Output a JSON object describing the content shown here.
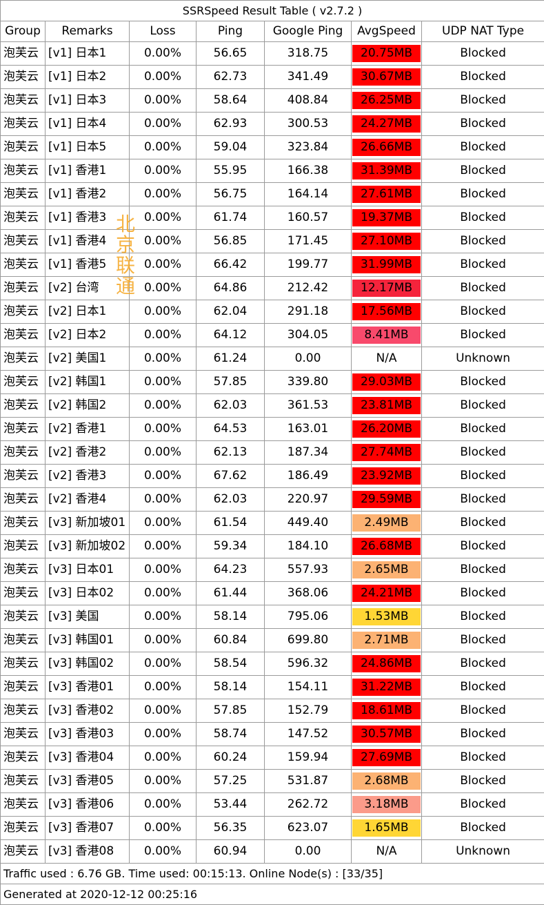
{
  "title": "SSRSpeed Result Table ( v2.7.2 )",
  "columns": [
    "Group",
    "Remarks",
    "Loss",
    "Ping",
    "Google Ping",
    "AvgSpeed",
    "UDP NAT Type"
  ],
  "rows": [
    {
      "group": "泡芙云",
      "remarks": "[v1] 日本1",
      "loss": "0.00%",
      "ping": "56.65",
      "google_ping": "318.75",
      "avg_speed": "20.75MB",
      "speed_color": "#ff0000",
      "nat": "Blocked"
    },
    {
      "group": "泡芙云",
      "remarks": "[v1] 日本2",
      "loss": "0.00%",
      "ping": "62.73",
      "google_ping": "341.49",
      "avg_speed": "30.67MB",
      "speed_color": "#ff0000",
      "nat": "Blocked"
    },
    {
      "group": "泡芙云",
      "remarks": "[v1] 日本3",
      "loss": "0.00%",
      "ping": "58.64",
      "google_ping": "408.84",
      "avg_speed": "26.25MB",
      "speed_color": "#ff0000",
      "nat": "Blocked"
    },
    {
      "group": "泡芙云",
      "remarks": "[v1] 日本4",
      "loss": "0.00%",
      "ping": "62.93",
      "google_ping": "300.53",
      "avg_speed": "24.27MB",
      "speed_color": "#ff0000",
      "nat": "Blocked"
    },
    {
      "group": "泡芙云",
      "remarks": "[v1] 日本5",
      "loss": "0.00%",
      "ping": "59.04",
      "google_ping": "323.84",
      "avg_speed": "26.66MB",
      "speed_color": "#ff0000",
      "nat": "Blocked"
    },
    {
      "group": "泡芙云",
      "remarks": "[v1] 香港1",
      "loss": "0.00%",
      "ping": "55.95",
      "google_ping": "166.38",
      "avg_speed": "31.39MB",
      "speed_color": "#ff0000",
      "nat": "Blocked"
    },
    {
      "group": "泡芙云",
      "remarks": "[v1] 香港2",
      "loss": "0.00%",
      "ping": "56.75",
      "google_ping": "164.14",
      "avg_speed": "27.61MB",
      "speed_color": "#ff0000",
      "nat": "Blocked"
    },
    {
      "group": "泡芙云",
      "remarks": "[v1] 香港3",
      "loss": "0.00%",
      "ping": "61.74",
      "google_ping": "160.57",
      "avg_speed": "19.37MB",
      "speed_color": "#ff0000",
      "nat": "Blocked"
    },
    {
      "group": "泡芙云",
      "remarks": "[v1] 香港4",
      "loss": "0.00%",
      "ping": "56.85",
      "google_ping": "171.45",
      "avg_speed": "27.10MB",
      "speed_color": "#ff0000",
      "nat": "Blocked"
    },
    {
      "group": "泡芙云",
      "remarks": "[v1] 香港5",
      "loss": "0.00%",
      "ping": "66.42",
      "google_ping": "199.77",
      "avg_speed": "31.99MB",
      "speed_color": "#ff0000",
      "nat": "Blocked"
    },
    {
      "group": "泡芙云",
      "remarks": "[v2] 台湾",
      "loss": "0.00%",
      "ping": "64.86",
      "google_ping": "212.42",
      "avg_speed": "12.17MB",
      "speed_color": "#f5243c",
      "nat": "Blocked"
    },
    {
      "group": "泡芙云",
      "remarks": "[v2] 日本1",
      "loss": "0.00%",
      "ping": "62.04",
      "google_ping": "291.18",
      "avg_speed": "17.56MB",
      "speed_color": "#ff0000",
      "nat": "Blocked"
    },
    {
      "group": "泡芙云",
      "remarks": "[v2] 日本2",
      "loss": "0.00%",
      "ping": "64.12",
      "google_ping": "304.05",
      "avg_speed": "8.41MB",
      "speed_color": "#f84a6c",
      "nat": "Blocked"
    },
    {
      "group": "泡芙云",
      "remarks": "[v2] 美国1",
      "loss": "0.00%",
      "ping": "61.24",
      "google_ping": "0.00",
      "avg_speed": "N/A",
      "speed_color": "#ffffff",
      "nat": "Unknown"
    },
    {
      "group": "泡芙云",
      "remarks": "[v2] 韩国1",
      "loss": "0.00%",
      "ping": "57.85",
      "google_ping": "339.80",
      "avg_speed": "29.03MB",
      "speed_color": "#ff0000",
      "nat": "Blocked"
    },
    {
      "group": "泡芙云",
      "remarks": "[v2] 韩国2",
      "loss": "0.00%",
      "ping": "62.03",
      "google_ping": "361.53",
      "avg_speed": "23.81MB",
      "speed_color": "#ff0000",
      "nat": "Blocked"
    },
    {
      "group": "泡芙云",
      "remarks": "[v2] 香港1",
      "loss": "0.00%",
      "ping": "64.53",
      "google_ping": "163.01",
      "avg_speed": "26.20MB",
      "speed_color": "#ff0000",
      "nat": "Blocked"
    },
    {
      "group": "泡芙云",
      "remarks": "[v2] 香港2",
      "loss": "0.00%",
      "ping": "62.13",
      "google_ping": "187.34",
      "avg_speed": "27.74MB",
      "speed_color": "#ff0000",
      "nat": "Blocked"
    },
    {
      "group": "泡芙云",
      "remarks": "[v2] 香港3",
      "loss": "0.00%",
      "ping": "67.62",
      "google_ping": "186.49",
      "avg_speed": "23.92MB",
      "speed_color": "#ff0000",
      "nat": "Blocked"
    },
    {
      "group": "泡芙云",
      "remarks": "[v2] 香港4",
      "loss": "0.00%",
      "ping": "62.03",
      "google_ping": "220.97",
      "avg_speed": "29.59MB",
      "speed_color": "#ff0000",
      "nat": "Blocked"
    },
    {
      "group": "泡芙云",
      "remarks": "[v3] 新加坡01",
      "loss": "0.00%",
      "ping": "61.54",
      "google_ping": "449.40",
      "avg_speed": "2.49MB",
      "speed_color": "#fcb273",
      "nat": "Blocked"
    },
    {
      "group": "泡芙云",
      "remarks": "[v3] 新加坡02",
      "loss": "0.00%",
      "ping": "59.34",
      "google_ping": "184.10",
      "avg_speed": "26.68MB",
      "speed_color": "#ff0000",
      "nat": "Blocked"
    },
    {
      "group": "泡芙云",
      "remarks": "[v3] 日本01",
      "loss": "0.00%",
      "ping": "64.23",
      "google_ping": "557.93",
      "avg_speed": "2.65MB",
      "speed_color": "#fcb273",
      "nat": "Blocked"
    },
    {
      "group": "泡芙云",
      "remarks": "[v3] 日本02",
      "loss": "0.00%",
      "ping": "61.44",
      "google_ping": "368.06",
      "avg_speed": "24.21MB",
      "speed_color": "#ff0000",
      "nat": "Blocked"
    },
    {
      "group": "泡芙云",
      "remarks": "[v3] 美国",
      "loss": "0.00%",
      "ping": "58.14",
      "google_ping": "795.06",
      "avg_speed": "1.53MB",
      "speed_color": "#ffd635",
      "nat": "Blocked"
    },
    {
      "group": "泡芙云",
      "remarks": "[v3] 韩国01",
      "loss": "0.00%",
      "ping": "60.84",
      "google_ping": "699.80",
      "avg_speed": "2.71MB",
      "speed_color": "#fcb273",
      "nat": "Blocked"
    },
    {
      "group": "泡芙云",
      "remarks": "[v3] 韩国02",
      "loss": "0.00%",
      "ping": "58.54",
      "google_ping": "596.32",
      "avg_speed": "24.86MB",
      "speed_color": "#ff0000",
      "nat": "Blocked"
    },
    {
      "group": "泡芙云",
      "remarks": "[v3] 香港01",
      "loss": "0.00%",
      "ping": "58.14",
      "google_ping": "154.11",
      "avg_speed": "31.22MB",
      "speed_color": "#ff0000",
      "nat": "Blocked"
    },
    {
      "group": "泡芙云",
      "remarks": "[v3] 香港02",
      "loss": "0.00%",
      "ping": "57.85",
      "google_ping": "152.79",
      "avg_speed": "18.61MB",
      "speed_color": "#ff0000",
      "nat": "Blocked"
    },
    {
      "group": "泡芙云",
      "remarks": "[v3] 香港03",
      "loss": "0.00%",
      "ping": "58.74",
      "google_ping": "147.52",
      "avg_speed": "30.57MB",
      "speed_color": "#ff0000",
      "nat": "Blocked"
    },
    {
      "group": "泡芙云",
      "remarks": "[v3] 香港04",
      "loss": "0.00%",
      "ping": "60.24",
      "google_ping": "159.94",
      "avg_speed": "27.69MB",
      "speed_color": "#ff0000",
      "nat": "Blocked"
    },
    {
      "group": "泡芙云",
      "remarks": "[v3] 香港05",
      "loss": "0.00%",
      "ping": "57.25",
      "google_ping": "531.87",
      "avg_speed": "2.68MB",
      "speed_color": "#fcb273",
      "nat": "Blocked"
    },
    {
      "group": "泡芙云",
      "remarks": "[v3] 香港06",
      "loss": "0.00%",
      "ping": "53.44",
      "google_ping": "262.72",
      "avg_speed": "3.18MB",
      "speed_color": "#fb9b8a",
      "nat": "Blocked"
    },
    {
      "group": "泡芙云",
      "remarks": "[v3] 香港07",
      "loss": "0.00%",
      "ping": "56.35",
      "google_ping": "623.07",
      "avg_speed": "1.65MB",
      "speed_color": "#ffd635",
      "nat": "Blocked"
    },
    {
      "group": "泡芙云",
      "remarks": "[v3] 香港08",
      "loss": "0.00%",
      "ping": "60.94",
      "google_ping": "0.00",
      "avg_speed": "N/A",
      "speed_color": "#ffffff",
      "nat": "Unknown"
    }
  ],
  "footer": {
    "traffic": "Traffic used : 6.76 GB. Time used: 00:15:13. Online Node(s) : [33/35]",
    "generated": "Generated at 2020-12-12 00:25:16"
  },
  "watermark": [
    "北",
    "京",
    "联",
    "通"
  ],
  "colors": {
    "border": "#9a9a9a",
    "watermark": "#f5a623"
  }
}
